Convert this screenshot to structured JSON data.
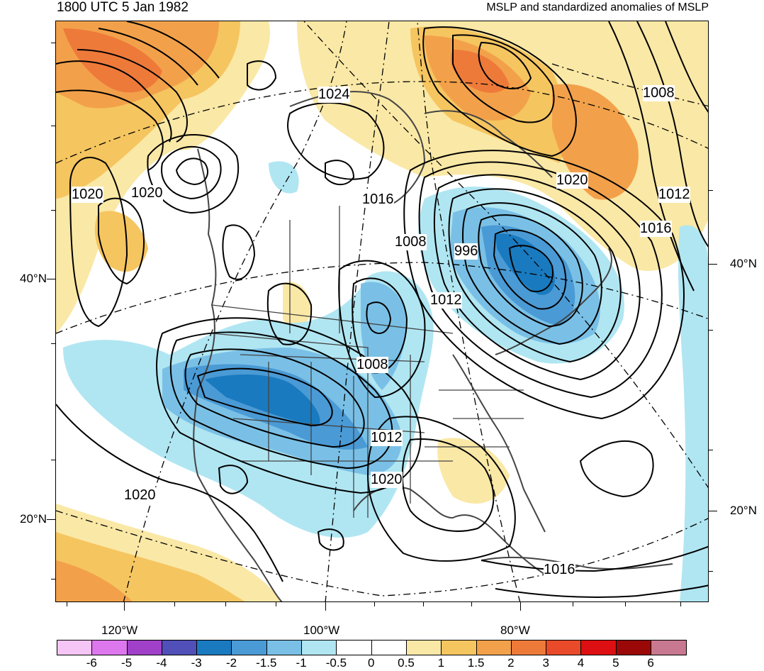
{
  "title_left": "1800 UTC 5 Jan 1982",
  "title_right": "MSLP and standardized anomalies of MSLP",
  "map": {
    "lat_labels_left": [
      "40°N",
      "20°N"
    ],
    "lat_labels_right": [
      "40°N",
      "20°N"
    ],
    "lon_labels": [
      "120°W",
      "100°W",
      "80°W"
    ],
    "contour_labels": [
      "1024",
      "1008",
      "1020",
      "1020",
      "1012",
      "1016",
      "1016",
      "1008",
      "996",
      "1012",
      "1008",
      "1012",
      "1020",
      "1020",
      "1016",
      "1020"
    ]
  },
  "colorbar": {
    "colors": [
      "#f5c6f5",
      "#dd77ee",
      "#a040c8",
      "#5050b8",
      "#1a7abf",
      "#4a9ad5",
      "#7ac0e6",
      "#b0e6f2",
      "#ffffff",
      "#ffffff",
      "#fae8a6",
      "#f5c560",
      "#f2a14a",
      "#ee7a3a",
      "#e84a2a",
      "#dd0f12",
      "#9a0808",
      "#c87890"
    ],
    "labels": [
      "-6",
      "-5",
      "-4",
      "-3",
      "-2",
      "-1.5",
      "-1",
      "-0.5",
      "0",
      "0.5",
      "1",
      "1.5",
      "2",
      "3",
      "4",
      "5",
      "6"
    ]
  }
}
